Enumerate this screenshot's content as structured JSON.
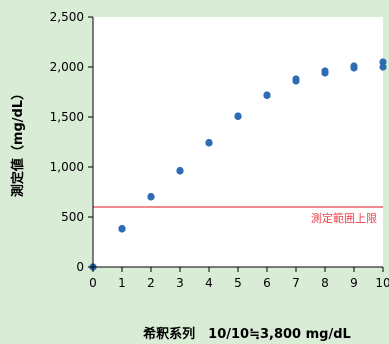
{
  "chart_data": {
    "type": "scatter",
    "title": "",
    "xlabel": "希釈系列　10/10≒3,800 mg/dL",
    "ylabel": "測定値（mg/dL）",
    "xlim": [
      0,
      10
    ],
    "ylim": [
      0,
      2500
    ],
    "x_ticks": [
      "0",
      "1",
      "2",
      "3",
      "4",
      "5",
      "6",
      "7",
      "8",
      "9",
      "10"
    ],
    "y_ticks": [
      "0",
      "500",
      "1,000",
      "1,500",
      "2,000",
      "2,500"
    ],
    "grid": false,
    "legend": "none",
    "point_color": "#2e6db4",
    "series": [
      {
        "points": [
          [
            0,
            0
          ],
          [
            0,
            0
          ],
          [
            1,
            380
          ],
          [
            1,
            385
          ],
          [
            2,
            700
          ],
          [
            2,
            705
          ],
          [
            3,
            960
          ],
          [
            3,
            965
          ],
          [
            4,
            1240
          ],
          [
            4,
            1245
          ],
          [
            5,
            1505
          ],
          [
            5,
            1510
          ],
          [
            6,
            1715
          ],
          [
            6,
            1720
          ],
          [
            7,
            1860
          ],
          [
            7,
            1880
          ],
          [
            8,
            1940
          ],
          [
            8,
            1960
          ],
          [
            9,
            1990
          ],
          [
            9,
            2010
          ],
          [
            10,
            2000
          ],
          [
            10,
            2050
          ]
        ]
      }
    ],
    "reference_line": {
      "y": 600,
      "label": "測定範囲上限",
      "color": "#e8434b"
    }
  }
}
